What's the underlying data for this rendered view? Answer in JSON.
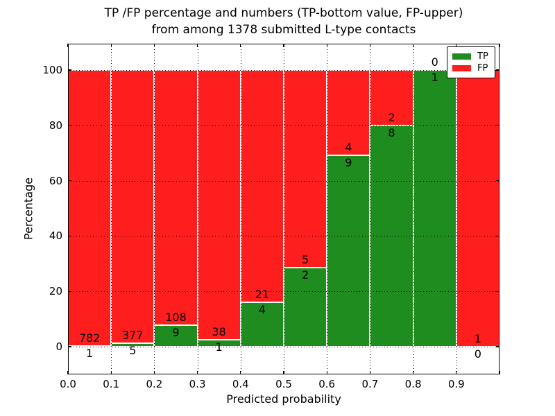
{
  "chart_data": {
    "type": "bar",
    "variant": "stacked-percentage-histogram",
    "title_line1": "TP /FP percentage and numbers (TP-bottom value, FP-upper)",
    "title_line2": "from among 1378 submitted L-type contacts",
    "total_contacts": 1378,
    "xlabel": "Predicted probability",
    "ylabel": "Percentage",
    "xlim": [
      0.0,
      1.0
    ],
    "ylim": [
      -10,
      110
    ],
    "bin_width": 0.1,
    "xticks": [
      "0.0",
      "0.1",
      "0.2",
      "0.3",
      "0.4",
      "0.5",
      "0.6",
      "0.7",
      "0.8",
      "0.9"
    ],
    "yticks": [
      0,
      20,
      40,
      60,
      80,
      100
    ],
    "grid": "dotted",
    "legend_position": "upper right",
    "series": [
      {
        "name": "TP",
        "color": "#1e8c1e"
      },
      {
        "name": "FP",
        "color": "#ff1e1e"
      }
    ],
    "bins": [
      {
        "range": "0.0-0.1",
        "tp": 1,
        "fp": 782,
        "tp_pct": 0.13
      },
      {
        "range": "0.1-0.2",
        "tp": 5,
        "fp": 377,
        "tp_pct": 1.31
      },
      {
        "range": "0.2-0.3",
        "tp": 9,
        "fp": 108,
        "tp_pct": 7.69
      },
      {
        "range": "0.3-0.4",
        "tp": 1,
        "fp": 38,
        "tp_pct": 2.56
      },
      {
        "range": "0.4-0.5",
        "tp": 4,
        "fp": 21,
        "tp_pct": 16.0
      },
      {
        "range": "0.5-0.6",
        "tp": 2,
        "fp": 5,
        "tp_pct": 28.57
      },
      {
        "range": "0.6-0.7",
        "tp": 9,
        "fp": 4,
        "tp_pct": 69.23
      },
      {
        "range": "0.7-0.8",
        "tp": 8,
        "fp": 2,
        "tp_pct": 80.0
      },
      {
        "range": "0.8-0.9",
        "tp": 1,
        "fp": 0,
        "tp_pct": 100.0
      },
      {
        "range": "0.9-1.0",
        "tp": 0,
        "fp": 1,
        "tp_pct": 0.0
      }
    ]
  }
}
